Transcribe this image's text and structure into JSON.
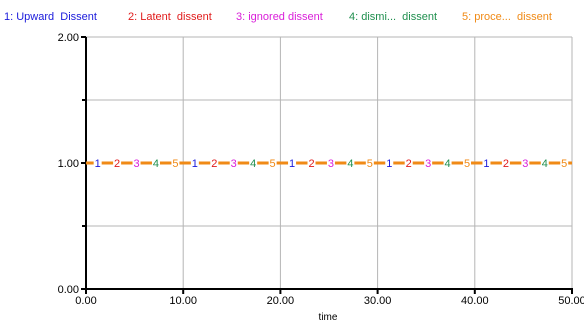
{
  "chart_data": {
    "type": "line",
    "xlabel": "time",
    "ylabel": "",
    "xlim": [
      0,
      50
    ],
    "ylim": [
      0,
      2
    ],
    "x_ticks": [
      "0.00",
      "10.00",
      "20.00",
      "30.00",
      "40.00",
      "50.00"
    ],
    "y_ticks": [
      "0.00",
      "1.00",
      "2.00"
    ],
    "grid": true,
    "legend_position": "top",
    "x": [
      0,
      5,
      10,
      15,
      20,
      25,
      30,
      35,
      40,
      45,
      50
    ],
    "series": [
      {
        "id": "1",
        "name": "Upward  Dissent",
        "color": "#1a1adb",
        "values": [
          1,
          1,
          1,
          1,
          1,
          1,
          1,
          1,
          1,
          1,
          1
        ]
      },
      {
        "id": "2",
        "name": "Latent  dissent",
        "color": "#e01b1b",
        "values": [
          1,
          1,
          1,
          1,
          1,
          1,
          1,
          1,
          1,
          1,
          1
        ]
      },
      {
        "id": "3",
        "name": "ignored dissent",
        "color": "#d91ed9",
        "values": [
          1,
          1,
          1,
          1,
          1,
          1,
          1,
          1,
          1,
          1,
          1
        ]
      },
      {
        "id": "4",
        "name": "dismi...  dissent",
        "color": "#1f8f4e",
        "values": [
          1,
          1,
          1,
          1,
          1,
          1,
          1,
          1,
          1,
          1,
          1
        ]
      },
      {
        "id": "5",
        "name": "proce...  dissent",
        "color": "#f08a16",
        "values": [
          1,
          1,
          1,
          1,
          1,
          1,
          1,
          1,
          1,
          1,
          1
        ]
      }
    ]
  }
}
